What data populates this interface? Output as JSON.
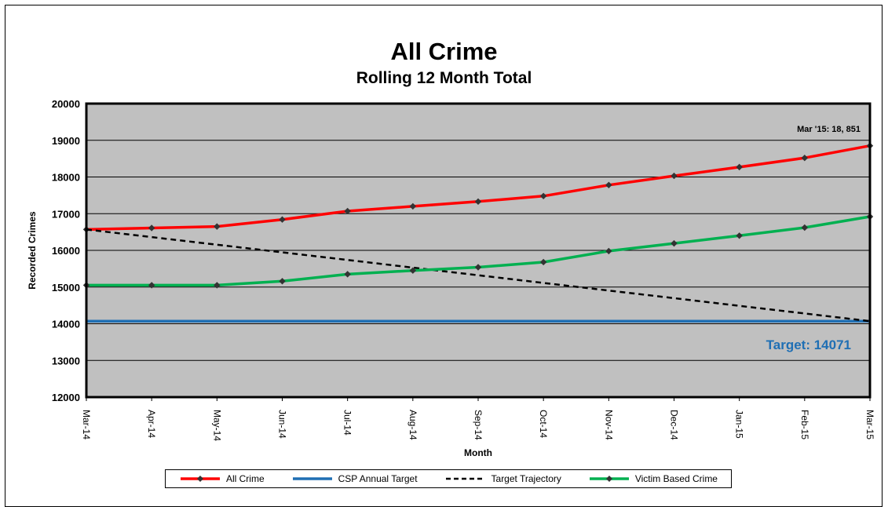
{
  "chart_data": {
    "type": "line",
    "title": "All Crime",
    "subtitle": "Rolling 12 Month Total",
    "xlabel": "Month",
    "ylabel": "Recorded Crimes",
    "ylim": [
      12000,
      20000
    ],
    "y_ticks": [
      "12000",
      "13000",
      "14000",
      "15000",
      "16000",
      "17000",
      "18000",
      "19000",
      "20000"
    ],
    "categories": [
      "Mar-14",
      "Apr-14",
      "May-14",
      "Jun-14",
      "Jul-14",
      "Aug-14",
      "Sep-14",
      "Oct-14",
      "Nov-14",
      "Dec-14",
      "Jan-15",
      "Feb-15",
      "Mar-15"
    ],
    "grid": true,
    "plot_background": "#c0c0c0",
    "legend_position": "bottom",
    "series": [
      {
        "name": "All Crime",
        "color": "#ff0000",
        "style": "solid",
        "markers": true,
        "values": [
          16570,
          16610,
          16650,
          16840,
          17070,
          17200,
          17330,
          17480,
          17780,
          18030,
          18270,
          18520,
          18851
        ]
      },
      {
        "name": "CSP Annual Target",
        "color": "#1f6fb4",
        "style": "solid",
        "markers": false,
        "values": [
          14071,
          14071,
          14071,
          14071,
          14071,
          14071,
          14071,
          14071,
          14071,
          14071,
          14071,
          14071,
          14071
        ]
      },
      {
        "name": "Target Trajectory",
        "color": "#000000",
        "style": "dashed",
        "markers": false,
        "values": [
          16570,
          16362,
          16154,
          15946,
          15738,
          15529,
          15321,
          15113,
          14905,
          14697,
          14488,
          14280,
          14071
        ]
      },
      {
        "name": "Victim Based Crime",
        "color": "#00b050",
        "style": "solid",
        "markers": true,
        "values": [
          15050,
          15050,
          15050,
          15160,
          15350,
          15450,
          15540,
          15680,
          15980,
          16190,
          16400,
          16620,
          16920
        ]
      }
    ],
    "annotations": {
      "last_value": "Mar '15: 18, 851",
      "target": "Target: 14071",
      "target_color": "#1f6fb4"
    }
  }
}
